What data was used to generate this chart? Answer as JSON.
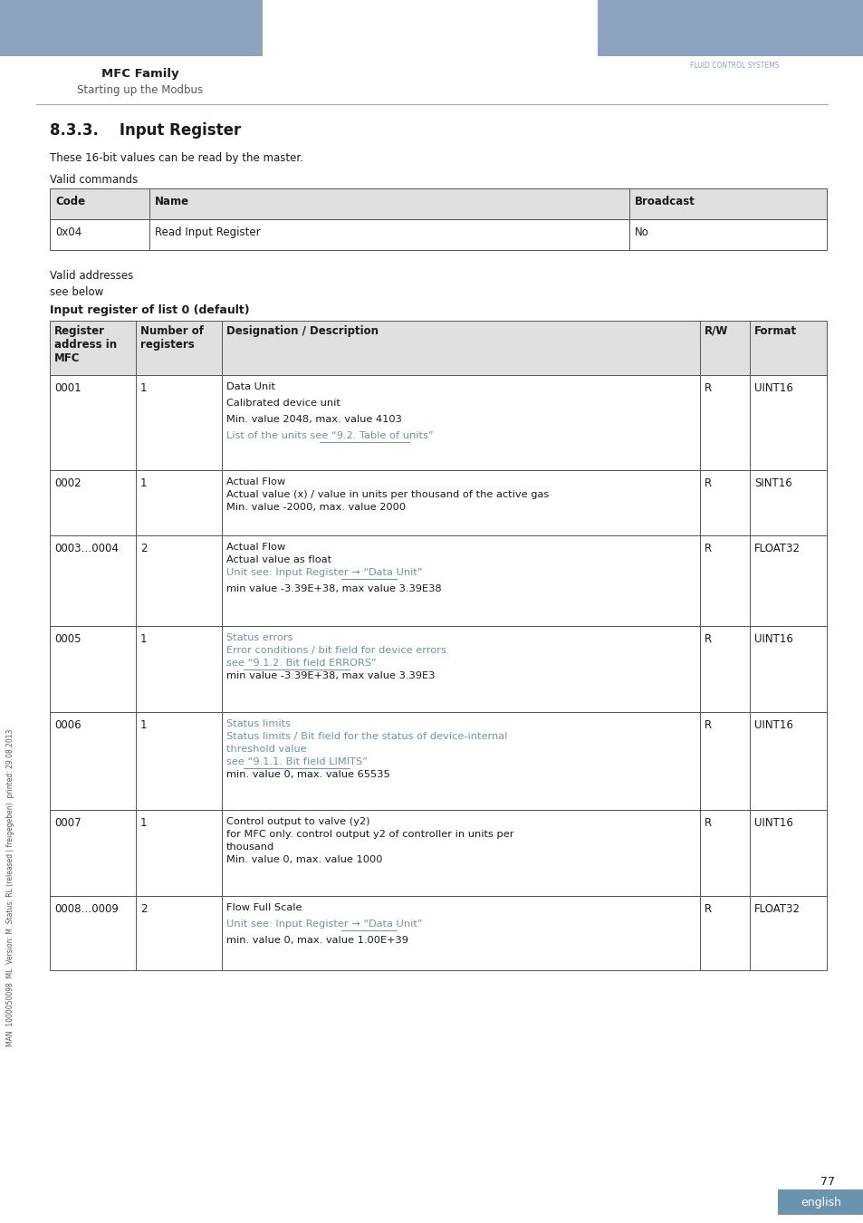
{
  "page_title": "MFC Family",
  "page_subtitle": "Starting up the Modbus",
  "header_bar_color": "#8ba3bf",
  "section_title": "8.3.3.    Input Register",
  "intro_text": "These 16-bit values can be read by the master.",
  "valid_commands_label": "Valid commands",
  "commands_table_headers": [
    "Code",
    "Name",
    "Broadcast"
  ],
  "commands_table_data": [
    [
      "0x04",
      "Read Input Register",
      "No"
    ]
  ],
  "valid_addresses_label": "Valid addresses",
  "see_below_label": "see below",
  "input_register_label": "Input register of list 0 (default)",
  "main_table_headers": [
    "Register\naddress in\nMFC",
    "Number of\nregisters",
    "Designation / Description",
    "R/W",
    "Format"
  ],
  "main_table_rows": [
    {
      "addr": "0001",
      "num": "1",
      "desc": [
        "Data Unit",
        "Calibrated device unit",
        "Min. value 2048, max. value 4103",
        "List of the units see “9.2. Table of units”"
      ],
      "desc_underline": [
        3
      ],
      "rw": "R",
      "fmt": "UINT16"
    },
    {
      "addr": "0002",
      "num": "1",
      "desc": [
        "Actual Flow\nActual value (x) / value in units per thousand of the active gas",
        "Min. value -2000, max. value 2000"
      ],
      "desc_underline": [],
      "rw": "R",
      "fmt": "SINT16"
    },
    {
      "addr": "0003…0004",
      "num": "2",
      "desc": [
        "Actual Flow\nActual value as float",
        "Unit see: Input Register → “Data Unit”",
        "min value -3.39E+38, max value 3.39E38"
      ],
      "desc_underline": [
        1
      ],
      "rw": "R",
      "fmt": "FLOAT32"
    },
    {
      "addr": "0005",
      "num": "1",
      "desc": [
        "Status errors\nError conditions / bit field for device errors.\nsee “9.1.2. Bit field ERRORS”",
        "min value -3.39E+38, max value 3.39E3"
      ],
      "desc_underline": [
        0
      ],
      "rw": "R",
      "fmt": "UINT16"
    },
    {
      "addr": "0006",
      "num": "1",
      "desc": [
        "Status limits\nStatus limits / Bit field for the status of device-internal\nthreshold value\nsee “9.1.1. Bit field LIMITS”",
        "min. value 0, max. value 65535"
      ],
      "desc_underline": [
        0
      ],
      "rw": "R",
      "fmt": "UINT16"
    },
    {
      "addr": "0007",
      "num": "1",
      "desc": [
        "Control output to valve (y2)\nfor MFC only. control output y2 of controller in units per\nthousand",
        "Min. value 0, max. value 1000"
      ],
      "desc_underline": [],
      "rw": "R",
      "fmt": "UINT16"
    },
    {
      "addr": "0008…0009",
      "num": "2",
      "desc": [
        "Flow Full Scale",
        "Unit see: Input Register → “Data Unit”",
        "min. value 0, max. value 1.00E+39"
      ],
      "desc_underline": [
        1
      ],
      "rw": "R",
      "fmt": "FLOAT32"
    }
  ],
  "page_number": "77",
  "language_label": "english",
  "sidebar_text": "MAN  1000050098  ML  Version: M  Status: RL (released | freigegeben)  printed: 29.08.2013",
  "table_header_bg": "#e0e0e0",
  "table_border_color": "#555555",
  "text_color": "#1a1a1a",
  "burkert_blue": "#6a93b0"
}
